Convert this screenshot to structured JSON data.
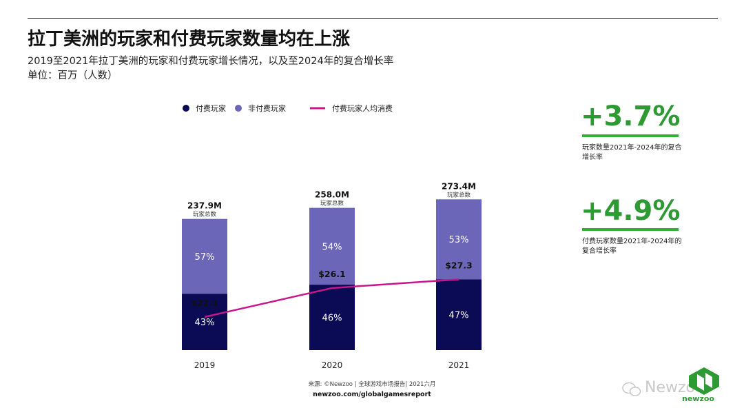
{
  "title": "拉丁美洲的玩家和付费玩家数量均在上涨",
  "subtitle": "2019至2021年拉丁美洲的玩家和付费玩家增长情况，以及至2024年的复合增长率",
  "unit": "单位：百万（人数）",
  "legend": {
    "paying": "付费玩家",
    "nonpaying": "非付费玩家",
    "spend": "付费玩家人均消费"
  },
  "colors": {
    "paying": "#0b0a55",
    "nonpaying": "#6b66b8",
    "spend_line": "#c8168a",
    "kpi": "#2e9a33"
  },
  "kpis": [
    {
      "value": "+3.7%",
      "desc": "玩家数量2021年-2024年的复合增长率"
    },
    {
      "value": "+4.9%",
      "desc": "付费玩家数量2021年-2024年的复合增长率"
    }
  ],
  "source": "来源: ©Newzoo | 全球游戏市场报告| 2021六月",
  "site": "newzoo.com/globalgamesreport",
  "watermark": "Newzoo",
  "logo_text": "newzoo",
  "chart_data": {
    "type": "bar",
    "categories": [
      "2019",
      "2020",
      "2021"
    ],
    "totals": [
      237.9,
      258.0,
      273.4
    ],
    "total_labels": [
      "237.9M",
      "258.0M",
      "273.4M"
    ],
    "total_sublabel": "玩家总数",
    "series": [
      {
        "name": "付费玩家",
        "values": [
          43,
          46,
          47
        ],
        "labels": [
          "43%",
          "46%",
          "47%"
        ]
      },
      {
        "name": "非付费玩家",
        "values": [
          57,
          54,
          53
        ],
        "labels": [
          "57%",
          "54%",
          "53%"
        ]
      }
    ],
    "line": {
      "name": "付费玩家人均消费",
      "values": [
        22.1,
        26.1,
        27.3
      ],
      "labels": [
        "$22.1",
        "$26.1",
        "$27.3"
      ]
    },
    "legend_position": "top",
    "grid": false
  }
}
